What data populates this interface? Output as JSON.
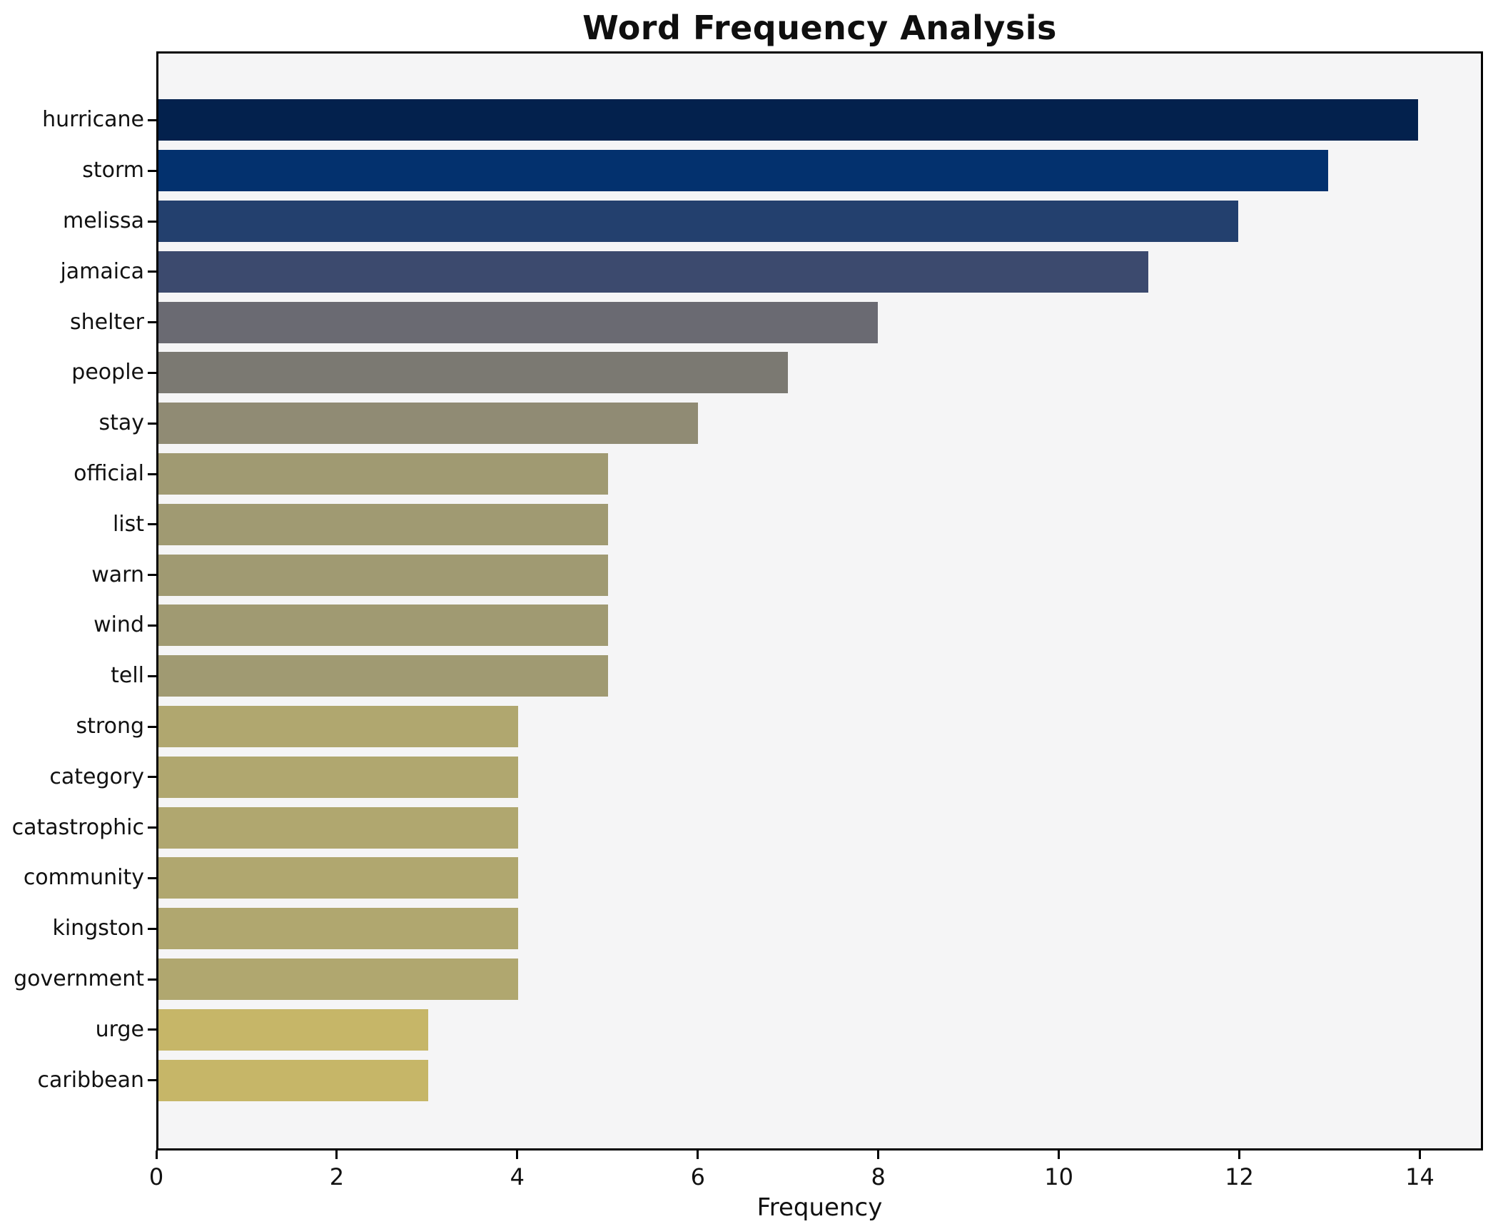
{
  "chart_data": {
    "type": "bar",
    "orientation": "horizontal",
    "title": "Word Frequency Analysis",
    "xlabel": "Frequency",
    "ylabel": "",
    "categories": [
      "hurricane",
      "storm",
      "melissa",
      "jamaica",
      "shelter",
      "people",
      "stay",
      "official",
      "list",
      "warn",
      "wind",
      "tell",
      "strong",
      "category",
      "catastrophic",
      "community",
      "kingston",
      "government",
      "urge",
      "caribbean"
    ],
    "values": [
      14,
      13,
      12,
      11,
      8,
      7,
      6,
      5,
      5,
      5,
      5,
      5,
      4,
      4,
      4,
      4,
      4,
      4,
      3,
      3
    ],
    "bar_colors": [
      "#03214d",
      "#03316e",
      "#23406e",
      "#3c4a6e",
      "#6a6a72",
      "#7b7972",
      "#908b74",
      "#a09a72",
      "#a09a72",
      "#a09a72",
      "#a09a72",
      "#a09a72",
      "#b0a76f",
      "#b0a76f",
      "#b0a76f",
      "#b0a76f",
      "#b0a76f",
      "#b0a76f",
      "#c6b668",
      "#c6b668"
    ],
    "xlim": [
      0,
      14.7
    ],
    "xticks": [
      0,
      2,
      4,
      6,
      8,
      10,
      12,
      14
    ],
    "grid": false,
    "legend": "none",
    "plot_background": "#f5f5f6",
    "figure_background": "#ffffff",
    "spine_color": "#000000"
  }
}
